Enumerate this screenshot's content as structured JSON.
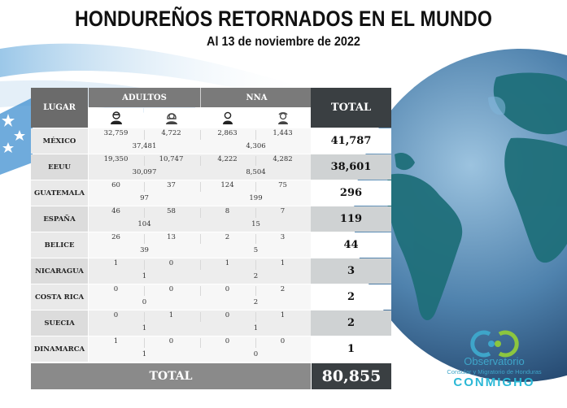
{
  "header": {
    "title": "HONDUREÑOS RETORNADOS EN EL MUNDO",
    "subtitle": "Al 13 de noviembre de 2022"
  },
  "table": {
    "col_place": "LUGAR",
    "group_adults": "ADULTOS",
    "group_nna": "NNA",
    "col_total": "TOTAL",
    "icons": [
      "man-icon",
      "woman-icon",
      "boy-icon",
      "girl-icon"
    ],
    "rows": [
      {
        "place": "MÉXICO",
        "adult_m": "32,759",
        "adult_f": "4,722",
        "adults": "37,481",
        "nna_m": "2,863",
        "nna_f": "1,443",
        "nna": "4,306",
        "total": "41,787"
      },
      {
        "place": "EEUU",
        "adult_m": "19,350",
        "adult_f": "10,747",
        "adults": "30,097",
        "nna_m": "4,222",
        "nna_f": "4,282",
        "nna": "8,504",
        "total": "38,601"
      },
      {
        "place": "GUATEMALA",
        "adult_m": "60",
        "adult_f": "37",
        "adults": "97",
        "nna_m": "124",
        "nna_f": "75",
        "nna": "199",
        "total": "296"
      },
      {
        "place": "ESPAÑA",
        "adult_m": "46",
        "adult_f": "58",
        "adults": "104",
        "nna_m": "8",
        "nna_f": "7",
        "nna": "15",
        "total": "119"
      },
      {
        "place": "BELICE",
        "adult_m": "26",
        "adult_f": "13",
        "adults": "39",
        "nna_m": "2",
        "nna_f": "3",
        "nna": "5",
        "total": "44"
      },
      {
        "place": "NICARAGUA",
        "adult_m": "1",
        "adult_f": "0",
        "adults": "1",
        "nna_m": "1",
        "nna_f": "1",
        "nna": "2",
        "total": "3"
      },
      {
        "place": "COSTA RICA",
        "adult_m": "0",
        "adult_f": "0",
        "adults": "0",
        "nna_m": "0",
        "nna_f": "2",
        "nna": "2",
        "total": "2"
      },
      {
        "place": "SUECIA",
        "adult_m": "0",
        "adult_f": "1",
        "adults": "1",
        "nna_m": "0",
        "nna_f": "1",
        "nna": "1",
        "total": "2"
      },
      {
        "place": "DINAMARCA",
        "adult_m": "1",
        "adult_f": "0",
        "adults": "1",
        "nna_m": "0",
        "nna_f": "0",
        "nna": "0",
        "total": "1"
      }
    ],
    "footer_label": "TOTAL",
    "footer_total": "80,855"
  },
  "logo": {
    "name": "Observatorio",
    "subtitle": "Consular y Migratorio de Honduras",
    "word": "CONMIGHO"
  },
  "colors": {
    "header_dark": "#3a3f42",
    "header_gray": "#7a7a7a",
    "ocean": "#4a7ea8",
    "land": "#1f6f7a",
    "logo_accent": "#2bb8d6"
  }
}
